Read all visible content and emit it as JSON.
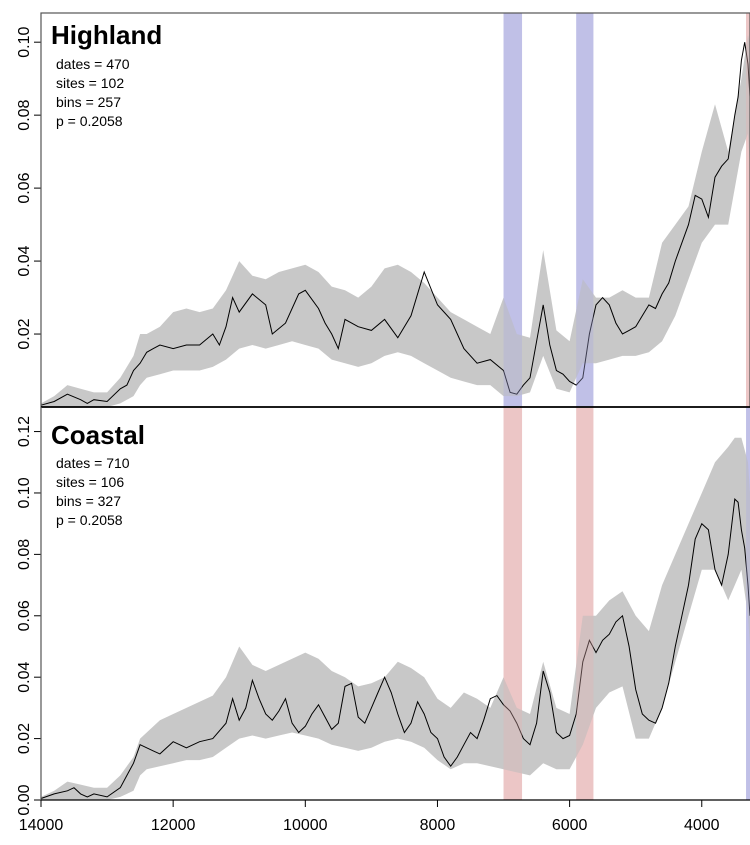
{
  "chart_data": [
    {
      "type": "area",
      "title": "Highland",
      "stats": [
        "dates = 470",
        "sites = 102",
        "bins = 257",
        "p = 0.2058"
      ],
      "xlim": [
        14000,
        3270
      ],
      "ylim": [
        0,
        0.108
      ],
      "y_ticks": [
        0.02,
        0.04,
        0.06,
        0.08,
        0.1
      ],
      "y_tick_labels": [
        "0.02",
        "0.04",
        "0.06",
        "0.08",
        "0.10"
      ],
      "shaded_periods": [
        {
          "from": 7000,
          "to": 6720,
          "color": "#aaaadf"
        },
        {
          "from": 5900,
          "to": 5640,
          "color": "#aaaadf"
        },
        {
          "from": 3330,
          "to": 3270,
          "color": "#e6b3b3"
        }
      ],
      "envelope": {
        "x": [
          14000,
          13800,
          13600,
          13400,
          13200,
          13000,
          12800,
          12600,
          12500,
          12400,
          12200,
          12000,
          11800,
          11600,
          11400,
          11200,
          11000,
          10800,
          10600,
          10400,
          10200,
          10000,
          9800,
          9600,
          9400,
          9200,
          9000,
          8800,
          8600,
          8400,
          8200,
          8000,
          7800,
          7600,
          7400,
          7200,
          7000,
          6800,
          6600,
          6400,
          6200,
          6000,
          5800,
          5600,
          5400,
          5200,
          5000,
          4800,
          4600,
          4400,
          4200,
          4000,
          3800,
          3600,
          3500,
          3400,
          3300,
          3270
        ],
        "upper": [
          0.001,
          0.003,
          0.006,
          0.005,
          0.004,
          0.004,
          0.008,
          0.014,
          0.02,
          0.02,
          0.022,
          0.026,
          0.027,
          0.026,
          0.027,
          0.032,
          0.04,
          0.036,
          0.035,
          0.037,
          0.038,
          0.039,
          0.037,
          0.033,
          0.032,
          0.03,
          0.033,
          0.038,
          0.039,
          0.037,
          0.034,
          0.03,
          0.026,
          0.024,
          0.022,
          0.02,
          0.03,
          0.02,
          0.019,
          0.043,
          0.021,
          0.018,
          0.035,
          0.03,
          0.03,
          0.032,
          0.03,
          0.03,
          0.045,
          0.05,
          0.055,
          0.07,
          0.083,
          0.07,
          0.08,
          0.09,
          0.102,
          0.1
        ],
        "lower": [
          0,
          0,
          0,
          0,
          0,
          0,
          0.001,
          0.003,
          0.006,
          0.008,
          0.009,
          0.01,
          0.01,
          0.01,
          0.011,
          0.013,
          0.016,
          0.017,
          0.016,
          0.017,
          0.018,
          0.017,
          0.016,
          0.013,
          0.012,
          0.011,
          0.012,
          0.014,
          0.015,
          0.014,
          0.012,
          0.01,
          0.008,
          0.007,
          0.006,
          0.006,
          0.003,
          0.003,
          0.004,
          0.014,
          0.005,
          0.004,
          0.012,
          0.012,
          0.013,
          0.014,
          0.014,
          0.015,
          0.018,
          0.025,
          0.035,
          0.045,
          0.05,
          0.05,
          0.06,
          0.07,
          0.075,
          0.065
        ]
      },
      "line": {
        "x": [
          14000,
          13800,
          13600,
          13400,
          13300,
          13200,
          13000,
          12800,
          12700,
          12600,
          12500,
          12400,
          12300,
          12200,
          12000,
          11800,
          11600,
          11400,
          11300,
          11200,
          11100,
          11000,
          10800,
          10600,
          10500,
          10300,
          10100,
          10000,
          9800,
          9700,
          9600,
          9500,
          9400,
          9200,
          9000,
          8800,
          8600,
          8400,
          8200,
          8000,
          7900,
          7800,
          7600,
          7400,
          7200,
          7000,
          6900,
          6800,
          6700,
          6600,
          6500,
          6400,
          6300,
          6200,
          6100,
          6000,
          5900,
          5800,
          5700,
          5600,
          5500,
          5400,
          5300,
          5200,
          5100,
          5000,
          4900,
          4800,
          4700,
          4600,
          4500,
          4400,
          4300,
          4200,
          4100,
          4000,
          3900,
          3800,
          3700,
          3600,
          3500,
          3450,
          3400,
          3350,
          3300,
          3270
        ],
        "y": [
          0.0005,
          0.0015,
          0.0035,
          0.002,
          0.001,
          0.002,
          0.0015,
          0.005,
          0.006,
          0.01,
          0.012,
          0.015,
          0.016,
          0.017,
          0.016,
          0.017,
          0.017,
          0.02,
          0.017,
          0.022,
          0.03,
          0.026,
          0.031,
          0.028,
          0.02,
          0.023,
          0.031,
          0.032,
          0.027,
          0.023,
          0.02,
          0.016,
          0.024,
          0.022,
          0.021,
          0.024,
          0.019,
          0.025,
          0.037,
          0.028,
          0.026,
          0.024,
          0.016,
          0.012,
          0.013,
          0.01,
          0.004,
          0.0035,
          0.006,
          0.008,
          0.018,
          0.028,
          0.017,
          0.01,
          0.009,
          0.007,
          0.006,
          0.008,
          0.02,
          0.028,
          0.03,
          0.028,
          0.023,
          0.02,
          0.021,
          0.022,
          0.025,
          0.028,
          0.027,
          0.031,
          0.034,
          0.04,
          0.045,
          0.05,
          0.058,
          0.057,
          0.052,
          0.063,
          0.066,
          0.068,
          0.08,
          0.085,
          0.095,
          0.1,
          0.094,
          0.085
        ]
      }
    },
    {
      "type": "area",
      "title": "Coastal",
      "stats": [
        "dates = 710",
        "sites = 106",
        "bins = 327",
        "p = 0.2058"
      ],
      "xlim": [
        14000,
        3270
      ],
      "ylim": [
        0,
        0.128
      ],
      "x_ticks": [
        14000,
        12000,
        10000,
        8000,
        6000,
        4000
      ],
      "x_tick_labels": [
        "14000",
        "12000",
        "10000",
        "8000",
        "6000",
        "4000"
      ],
      "y_ticks": [
        0,
        0.02,
        0.04,
        0.06,
        0.08,
        0.1,
        0.12
      ],
      "y_tick_labels": [
        "0.00",
        "0.02",
        "0.04",
        "0.06",
        "0.08",
        "0.10",
        "0.12"
      ],
      "shaded_periods": [
        {
          "from": 7000,
          "to": 6720,
          "color": "#e6b3b3"
        },
        {
          "from": 5900,
          "to": 5640,
          "color": "#e6b3b3"
        },
        {
          "from": 3330,
          "to": 3270,
          "color": "#aaaadf"
        }
      ],
      "envelope": {
        "x": [
          14000,
          13800,
          13600,
          13400,
          13200,
          13000,
          12800,
          12600,
          12500,
          12400,
          12200,
          12000,
          11800,
          11600,
          11400,
          11200,
          11000,
          10800,
          10600,
          10400,
          10200,
          10000,
          9800,
          9600,
          9400,
          9200,
          9000,
          8800,
          8600,
          8400,
          8200,
          8000,
          7800,
          7600,
          7400,
          7200,
          7000,
          6800,
          6600,
          6400,
          6200,
          6000,
          5800,
          5600,
          5400,
          5200,
          5000,
          4800,
          4600,
          4400,
          4200,
          4000,
          3800,
          3600,
          3500,
          3400,
          3300,
          3270
        ],
        "upper": [
          0.001,
          0.003,
          0.006,
          0.005,
          0.004,
          0.004,
          0.008,
          0.014,
          0.02,
          0.022,
          0.026,
          0.028,
          0.03,
          0.032,
          0.034,
          0.04,
          0.05,
          0.044,
          0.042,
          0.044,
          0.046,
          0.048,
          0.046,
          0.042,
          0.04,
          0.037,
          0.038,
          0.04,
          0.045,
          0.043,
          0.04,
          0.033,
          0.03,
          0.035,
          0.033,
          0.03,
          0.04,
          0.03,
          0.028,
          0.045,
          0.03,
          0.028,
          0.06,
          0.06,
          0.065,
          0.068,
          0.06,
          0.055,
          0.07,
          0.08,
          0.09,
          0.1,
          0.11,
          0.115,
          0.118,
          0.118,
          0.11,
          0.1
        ],
        "lower": [
          0,
          0,
          0,
          0,
          0,
          0,
          0.001,
          0.003,
          0.008,
          0.01,
          0.011,
          0.012,
          0.013,
          0.013,
          0.014,
          0.017,
          0.02,
          0.021,
          0.02,
          0.021,
          0.022,
          0.021,
          0.02,
          0.018,
          0.017,
          0.016,
          0.017,
          0.019,
          0.02,
          0.019,
          0.017,
          0.013,
          0.01,
          0.012,
          0.012,
          0.011,
          0.01,
          0.009,
          0.008,
          0.012,
          0.01,
          0.01,
          0.018,
          0.03,
          0.035,
          0.037,
          0.02,
          0.02,
          0.03,
          0.045,
          0.06,
          0.075,
          0.075,
          0.065,
          0.07,
          0.075,
          0.06,
          0.05
        ]
      },
      "line": {
        "x": [
          14000,
          13800,
          13600,
          13500,
          13400,
          13300,
          13200,
          13000,
          12800,
          12700,
          12600,
          12500,
          12400,
          12300,
          12200,
          12000,
          11800,
          11600,
          11400,
          11200,
          11100,
          11000,
          10900,
          10800,
          10700,
          10600,
          10500,
          10400,
          10300,
          10200,
          10100,
          10000,
          9900,
          9800,
          9700,
          9600,
          9500,
          9400,
          9300,
          9200,
          9100,
          9000,
          8900,
          8800,
          8700,
          8600,
          8500,
          8400,
          8300,
          8200,
          8100,
          8000,
          7900,
          7800,
          7700,
          7600,
          7500,
          7400,
          7300,
          7200,
          7100,
          7000,
          6900,
          6800,
          6700,
          6600,
          6500,
          6400,
          6300,
          6200,
          6100,
          6000,
          5900,
          5800,
          5700,
          5600,
          5500,
          5400,
          5300,
          5200,
          5100,
          5000,
          4900,
          4800,
          4700,
          4600,
          4500,
          4400,
          4300,
          4200,
          4100,
          4000,
          3900,
          3800,
          3700,
          3600,
          3500,
          3450,
          3400,
          3350,
          3300,
          3270
        ],
        "y": [
          0.0005,
          0.002,
          0.003,
          0.004,
          0.002,
          0.001,
          0.002,
          0.001,
          0.004,
          0.008,
          0.012,
          0.018,
          0.017,
          0.016,
          0.015,
          0.019,
          0.017,
          0.019,
          0.02,
          0.025,
          0.033,
          0.026,
          0.03,
          0.039,
          0.033,
          0.028,
          0.026,
          0.029,
          0.033,
          0.025,
          0.022,
          0.024,
          0.028,
          0.031,
          0.027,
          0.023,
          0.025,
          0.037,
          0.038,
          0.027,
          0.025,
          0.03,
          0.035,
          0.04,
          0.035,
          0.028,
          0.022,
          0.025,
          0.032,
          0.028,
          0.022,
          0.02,
          0.014,
          0.011,
          0.014,
          0.018,
          0.022,
          0.02,
          0.026,
          0.033,
          0.034,
          0.031,
          0.029,
          0.025,
          0.02,
          0.018,
          0.025,
          0.042,
          0.035,
          0.022,
          0.02,
          0.021,
          0.028,
          0.045,
          0.052,
          0.048,
          0.052,
          0.054,
          0.058,
          0.06,
          0.05,
          0.036,
          0.028,
          0.026,
          0.025,
          0.03,
          0.038,
          0.05,
          0.06,
          0.07,
          0.085,
          0.09,
          0.088,
          0.075,
          0.07,
          0.08,
          0.098,
          0.097,
          0.088,
          0.082,
          0.07,
          0.06
        ]
      }
    }
  ]
}
